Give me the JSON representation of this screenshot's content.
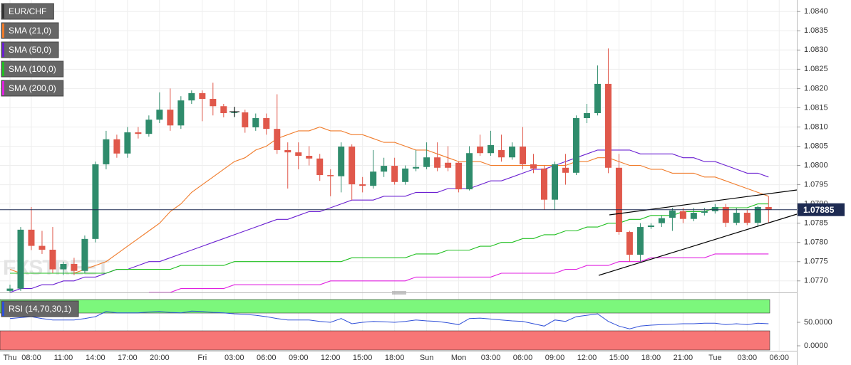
{
  "chart_data": [
    {
      "type": "candlestick",
      "watermark": "FXSTREET",
      "categories": [
        "Thu",
        null,
        "08:00",
        null,
        null,
        "11:00",
        null,
        null,
        "14:00",
        null,
        null,
        "17:00",
        null,
        null,
        "20:00",
        null,
        null,
        null,
        "Fri",
        null,
        null,
        "03:00",
        null,
        null,
        "06:00",
        null,
        null,
        "09:00",
        null,
        null,
        "12:00",
        null,
        null,
        "15:00",
        null,
        null,
        "18:00",
        null,
        null,
        "Sun",
        null,
        null,
        "Mon",
        null,
        null,
        "03:00",
        null,
        null,
        "06:00",
        null,
        null,
        "09:00",
        null,
        null,
        "12:00",
        null,
        null,
        "15:00",
        null,
        null,
        "18:00",
        null,
        null,
        "21:00",
        null,
        null,
        "Tue",
        null,
        null,
        "03:00",
        null,
        null,
        "06:00"
      ],
      "ylim": [
        1.0767,
        1.0843
      ],
      "yticks": [
        {
          "value": 1.077,
          "label": "1.0770"
        },
        1.0775,
        {
          "value": 1.078,
          "label": "1.0780"
        },
        1.0785,
        {
          "value": 1.079,
          "label": "1.0790"
        },
        1.0795,
        {
          "value": 1.08,
          "label": "1.0800"
        },
        1.0805,
        {
          "value": 1.081,
          "label": "1.0810"
        },
        1.0815,
        {
          "value": 1.082,
          "label": "1.0820"
        },
        1.0825,
        {
          "value": 1.083,
          "label": "1.0830"
        },
        1.0835,
        {
          "value": 1.084,
          "label": "1.0840"
        }
      ],
      "grid": true,
      "last_price": 1.07885,
      "last_price_color": "#1e2b52",
      "ohlc": {
        "name": "EUR/CHF",
        "up_color": "#2f8c6c",
        "down_color": "#e0584b",
        "open": [
          1.07674,
          1.0768,
          1.07833,
          1.07791,
          1.07781,
          1.0773,
          1.07744,
          1.07726,
          1.07809,
          1.08003,
          1.08068,
          1.08031,
          1.08086,
          1.08082,
          1.08119,
          1.08145,
          1.08104,
          1.08169,
          1.08188,
          1.08173,
          1.08154,
          1.08136,
          1.08138,
          1.08099,
          1.08123,
          1.08095,
          1.0804,
          1.08034,
          1.08025,
          1.08018,
          1.07975,
          1.07972,
          1.08049,
          1.07951,
          1.07947,
          1.07984,
          1.07999,
          1.07957,
          1.07992,
          1.07996,
          1.08021,
          1.08007,
          1.08007,
          1.07938,
          1.08049,
          1.08032,
          1.0804,
          1.08021,
          1.08049,
          1.08003,
          1.07992,
          1.07911,
          1.07994,
          1.07981,
          1.08123,
          1.08136,
          1.08212,
          1.07994,
          1.07827,
          1.07768,
          1.0784,
          1.0785,
          1.07864,
          1.07881,
          1.07861,
          1.07877,
          1.07881,
          1.07892,
          1.07851,
          1.07877,
          1.07851,
          1.07892,
          null
        ],
        "high": [
          1.0769,
          1.0784,
          1.07892,
          1.0783,
          1.0784,
          1.0775,
          1.0776,
          1.07818,
          1.0801,
          1.0809,
          1.0808,
          1.081,
          1.081,
          1.0813,
          1.0819,
          1.082,
          1.0818,
          1.08195,
          1.08195,
          1.08215,
          1.0816,
          1.0815,
          1.08145,
          1.08135,
          1.08135,
          1.08185,
          1.0806,
          1.0806,
          1.0805,
          1.0803,
          1.0799,
          1.0806,
          1.08055,
          1.0797,
          1.0804,
          1.0802,
          1.0802,
          1.08,
          1.0804,
          1.0806,
          1.0806,
          1.0805,
          1.0801,
          1.0805,
          1.0808,
          1.0809,
          1.0808,
          1.0806,
          1.081,
          1.0803,
          1.08,
          1.0801,
          1.0803,
          1.0813,
          1.0816,
          1.0826,
          1.08304,
          1.0803,
          1.0783,
          1.0785,
          1.0785,
          1.0787,
          1.0789,
          1.0789,
          1.0789,
          1.0789,
          1.079,
          1.079,
          1.0789,
          1.07885,
          1.07895,
          1.0792,
          null
        ],
        "low": [
          1.0767,
          1.07674,
          1.0778,
          1.0777,
          1.0772,
          1.07715,
          1.07715,
          1.0772,
          1.078,
          1.0799,
          1.0802,
          1.0802,
          1.0807,
          1.08075,
          1.0811,
          1.0809,
          1.08095,
          1.0816,
          1.08115,
          1.0813,
          1.08125,
          1.08125,
          1.08085,
          1.0809,
          1.0808,
          1.0803,
          1.0794,
          1.0799,
          1.08,
          1.0796,
          1.0792,
          1.0793,
          1.0791,
          1.0793,
          1.0794,
          1.0797,
          1.0795,
          1.0795,
          1.07985,
          1.0799,
          1.07985,
          1.07985,
          1.0793,
          1.07935,
          1.08025,
          1.08025,
          1.0801,
          1.08015,
          1.0799,
          1.0798,
          1.07885,
          1.07885,
          1.0795,
          1.07975,
          1.0811,
          1.0813,
          1.0798,
          1.0782,
          1.0775,
          1.0775,
          1.07835,
          1.0784,
          1.0783,
          1.0785,
          1.07855,
          1.0787,
          1.07875,
          1.0784,
          1.07845,
          1.07845,
          1.0784,
          1.0785,
          null
        ],
        "close": [
          1.0768,
          1.07833,
          1.07791,
          1.07781,
          1.0773,
          1.07744,
          1.07726,
          1.07809,
          1.08003,
          1.08068,
          1.08031,
          1.08086,
          1.08082,
          1.08119,
          1.08145,
          1.08104,
          1.08169,
          1.08188,
          1.08173,
          1.08154,
          1.08136,
          1.08138,
          1.08099,
          1.08123,
          1.08095,
          1.0804,
          1.08034,
          1.08025,
          1.08018,
          1.07975,
          1.07972,
          1.08049,
          1.07951,
          1.07947,
          1.07984,
          1.07999,
          1.07957,
          1.07992,
          1.07996,
          1.08021,
          1.07994,
          1.07994,
          1.07938,
          1.08032,
          1.08032,
          1.08053,
          1.08021,
          1.08049,
          1.08003,
          1.07992,
          1.07911,
          1.08003,
          1.07981,
          1.08123,
          1.08136,
          1.08212,
          1.07994,
          1.07827,
          1.07768,
          1.0784,
          1.07844,
          1.07863,
          1.07883,
          1.07861,
          1.07877,
          1.07881,
          1.07892,
          1.07851,
          1.07877,
          1.07851,
          1.07892,
          1.07885,
          null
        ]
      },
      "series": [
        {
          "name": "SMA (21,0)",
          "color": "#f07b2a",
          "values": [
            1.0773,
            1.0772,
            1.0772,
            1.0772,
            1.0772,
            1.0772,
            1.0772,
            1.0773,
            1.0774,
            1.0775,
            1.0777,
            1.0779,
            1.0781,
            1.0783,
            1.0785,
            1.0788,
            1.079,
            1.0793,
            1.0795,
            1.0797,
            1.0799,
            1.0801,
            1.0802,
            1.0804,
            1.0805,
            1.0807,
            1.0808,
            1.0809,
            1.0809,
            1.081,
            1.0809,
            1.0809,
            1.0808,
            1.0808,
            1.0807,
            1.0806,
            1.0806,
            1.0805,
            1.0804,
            1.0804,
            1.0803,
            1.0802,
            1.0801,
            1.0801,
            1.0801,
            1.08,
            1.08,
            1.08,
            1.08,
            1.08,
            1.08,
            1.08,
            1.08,
            1.0801,
            1.0801,
            1.0802,
            1.0802,
            1.0801,
            1.08,
            1.08,
            1.0799,
            1.0799,
            1.0798,
            1.0798,
            1.0798,
            1.0797,
            1.0797,
            1.0796,
            1.0795,
            1.0794,
            1.0793,
            1.0792,
            null
          ]
        },
        {
          "name": "SMA (50,0)",
          "color": "#6a1fd1",
          "values": [
            1.0767,
            1.0768,
            1.0768,
            1.0769,
            1.0769,
            1.077,
            1.077,
            1.0771,
            1.0771,
            1.0772,
            1.0773,
            1.0773,
            1.0774,
            1.0775,
            1.0775,
            1.0776,
            1.0777,
            1.0778,
            1.0779,
            1.078,
            1.0781,
            1.0782,
            1.0783,
            1.0784,
            1.0785,
            1.0786,
            1.0786,
            1.0787,
            1.0788,
            1.0788,
            1.0789,
            1.079,
            1.0791,
            1.0791,
            1.0791,
            1.0792,
            1.0792,
            1.0792,
            1.0793,
            1.0793,
            1.0793,
            1.0794,
            1.0794,
            1.0794,
            1.0795,
            1.0796,
            1.0796,
            1.0797,
            1.0798,
            1.0799,
            1.0799,
            1.08,
            1.0801,
            1.0802,
            1.0803,
            1.0804,
            1.0804,
            1.0804,
            1.0804,
            1.0803,
            1.0803,
            1.0803,
            1.0803,
            1.0802,
            1.0802,
            1.0801,
            1.0801,
            1.08,
            1.0799,
            1.0798,
            1.0798,
            1.0797,
            null
          ]
        },
        {
          "name": "SMA (100,0)",
          "color": "#1fbf1f",
          "values": [
            1.0772,
            1.0772,
            1.0772,
            1.0772,
            1.0772,
            1.0772,
            1.0772,
            1.0772,
            1.0772,
            1.0772,
            1.0773,
            1.0773,
            1.0773,
            1.0773,
            1.0773,
            1.0773,
            1.0774,
            1.0774,
            1.0774,
            1.0774,
            1.0774,
            1.0775,
            1.0775,
            1.0775,
            1.0775,
            1.0775,
            1.0775,
            1.0775,
            1.0775,
            1.0775,
            1.0775,
            1.0775,
            1.0776,
            1.0776,
            1.0776,
            1.0776,
            1.0776,
            1.0776,
            1.0777,
            1.0777,
            1.0777,
            1.0778,
            1.0778,
            1.0778,
            1.0779,
            1.0779,
            1.078,
            1.078,
            1.0781,
            1.0781,
            1.0782,
            1.0782,
            1.0783,
            1.0783,
            1.0784,
            1.0784,
            1.0785,
            1.0785,
            1.0786,
            1.0786,
            1.0787,
            1.0787,
            1.0787,
            1.0788,
            1.0788,
            1.0788,
            1.0789,
            1.0789,
            1.0789,
            1.0789,
            1.079,
            1.079,
            null
          ]
        },
        {
          "name": "SMA (200,0)",
          "color": "#e020e0",
          "values": [
            null,
            null,
            null,
            null,
            null,
            null,
            null,
            null,
            null,
            null,
            null,
            null,
            null,
            1.0767,
            1.0767,
            1.0767,
            1.0768,
            1.0768,
            1.0768,
            1.0768,
            1.0768,
            1.0769,
            1.0769,
            1.0769,
            1.0769,
            1.0769,
            1.0769,
            1.0769,
            1.0769,
            1.0769,
            1.077,
            1.077,
            1.077,
            1.077,
            1.077,
            1.077,
            1.077,
            1.077,
            1.0771,
            1.0771,
            1.0771,
            1.0771,
            1.0771,
            1.0771,
            1.0771,
            1.0771,
            1.0772,
            1.0772,
            1.0772,
            1.0772,
            1.0772,
            1.0772,
            1.0773,
            1.0773,
            1.0774,
            1.0774,
            1.0774,
            1.0775,
            1.0775,
            1.0775,
            1.0776,
            1.0776,
            1.0776,
            1.0776,
            1.0776,
            1.0776,
            1.0777,
            1.0777,
            1.0777,
            1.0777,
            1.0777,
            1.0777,
            null
          ]
        }
      ]
    },
    {
      "type": "line",
      "ylim": [
        -10,
        100
      ],
      "yticks": [
        {
          "value": 50,
          "label": "50.0000"
        },
        {
          "value": 0,
          "label": "0.0000"
        }
      ],
      "series": [
        {
          "name": "RSI (14,70,30,1)",
          "color": "#2f4fd8",
          "values": [
            58,
            60,
            62,
            58,
            55,
            55,
            55,
            58,
            62,
            73,
            70,
            70,
            70,
            72,
            73,
            71,
            70,
            74,
            73,
            71,
            70,
            68,
            67,
            65,
            62,
            58,
            55,
            55,
            55,
            52,
            50,
            58,
            47,
            50,
            52,
            51,
            50,
            52,
            55,
            53,
            52,
            49,
            45,
            58,
            59,
            57,
            55,
            53,
            52,
            47,
            42,
            55,
            52,
            62,
            65,
            68,
            52,
            42,
            36,
            42,
            44,
            45,
            46,
            47,
            47,
            48,
            48,
            45,
            47,
            45,
            48,
            47,
            null
          ]
        }
      ]
    }
  ]
}
